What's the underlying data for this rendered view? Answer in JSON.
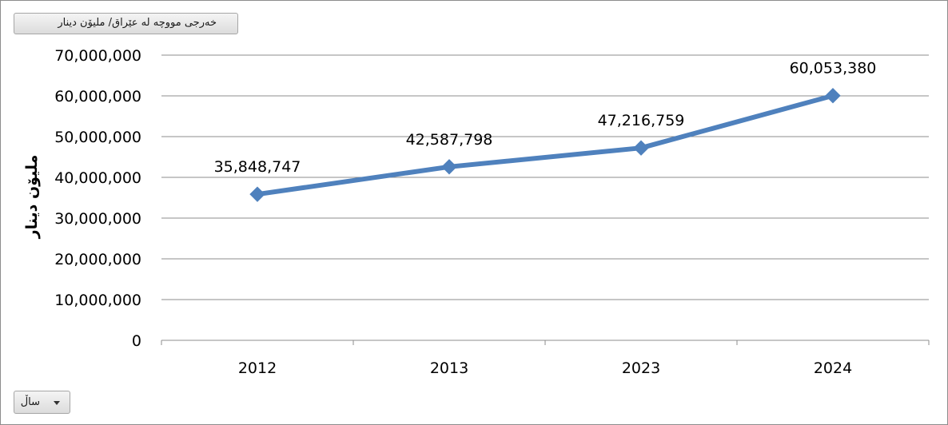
{
  "value_field_button": {
    "label": "خەرجی مووچە لە عێراق/ ملیۆن دینار"
  },
  "axis_field_button": {
    "label": "ساڵ",
    "icon": "chevron-down-icon"
  },
  "colors": {
    "series": "#4f81bd",
    "gridline": "#8c8c8c",
    "axis": "#8c8c8c"
  },
  "chart_data": {
    "type": "line",
    "title": "",
    "xlabel": "",
    "ylabel": "ملیۆن دینار",
    "categories": [
      "2012",
      "2013",
      "2023",
      "2024"
    ],
    "series": [
      {
        "values": [
          35848747,
          42587798,
          47216759,
          60053380
        ],
        "marker": "diamond",
        "color": "#4f81bd"
      }
    ],
    "data_labels": [
      "35,848,747",
      "42,587,798",
      "47,216,759",
      "60,053,380"
    ],
    "y_ticks": [
      "0",
      "10,000,000",
      "20,000,000",
      "30,000,000",
      "40,000,000",
      "50,000,000",
      "60,000,000",
      "70,000,000"
    ],
    "ylim": [
      0,
      70000000
    ],
    "grid": true,
    "legend": "none"
  }
}
